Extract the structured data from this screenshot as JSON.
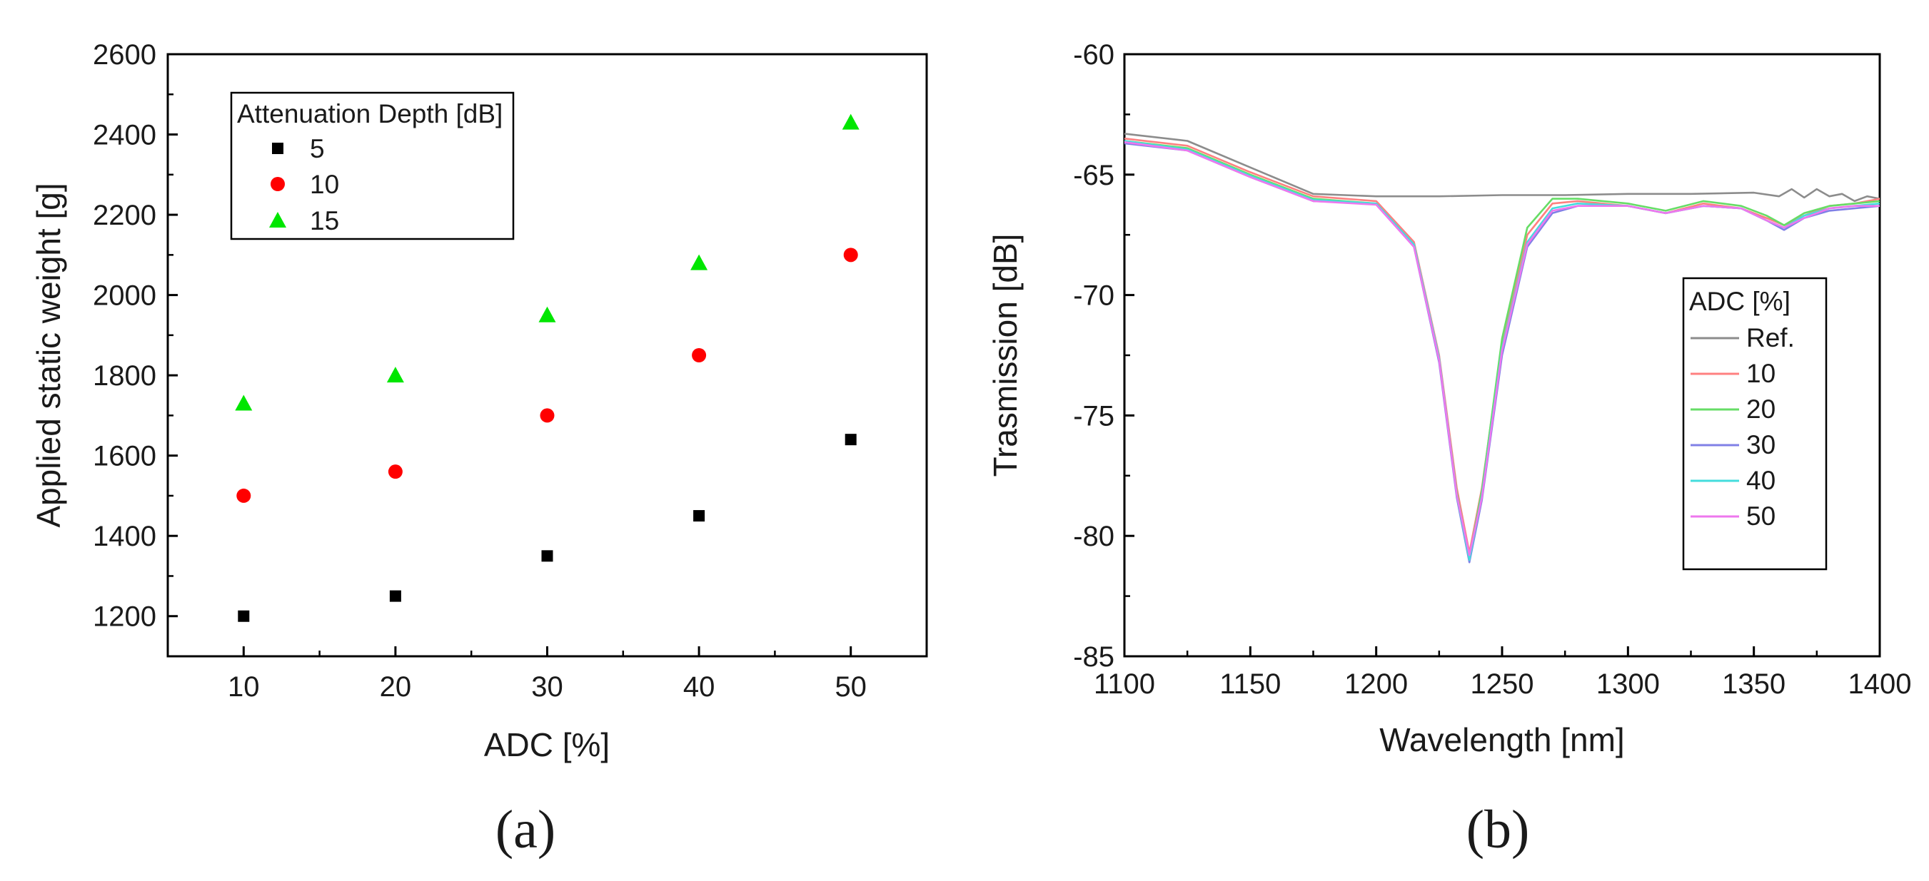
{
  "figure": {
    "panel_a_label": "(a)",
    "panel_b_label": "(b)"
  },
  "chart_data": [
    {
      "type": "scatter",
      "title": "",
      "xlabel": "ADC [%]",
      "ylabel": "Applied static weight [g]",
      "xlim": [
        5,
        55
      ],
      "ylim": [
        1100,
        2600
      ],
      "xticks": [
        10,
        20,
        30,
        40,
        50
      ],
      "yticks": [
        1200,
        1400,
        1600,
        1800,
        2000,
        2200,
        2400,
        2600
      ],
      "legend_title": "Attenuation Depth [dB]",
      "legend_position": "top-left",
      "series": [
        {
          "name": "5",
          "marker": "square",
          "color": "#000000",
          "x": [
            10,
            20,
            30,
            40,
            50
          ],
          "values": [
            1200,
            1250,
            1350,
            1450,
            1640
          ]
        },
        {
          "name": "10",
          "marker": "circle",
          "color": "#ff0000",
          "x": [
            10,
            20,
            30,
            40,
            50
          ],
          "values": [
            1500,
            1560,
            1700,
            1850,
            2100
          ]
        },
        {
          "name": "15",
          "marker": "triangle",
          "color": "#00e600",
          "x": [
            10,
            20,
            30,
            40,
            50
          ],
          "values": [
            1730,
            1800,
            1950,
            2080,
            2430
          ]
        }
      ]
    },
    {
      "type": "line",
      "title": "",
      "xlabel": "Wavelength [nm]",
      "ylabel": "Trasmission [dB]",
      "xlim": [
        1100,
        1400
      ],
      "ylim": [
        -85,
        -60
      ],
      "xticks": [
        1100,
        1150,
        1200,
        1250,
        1300,
        1350,
        1400
      ],
      "yticks": [
        -85,
        -80,
        -75,
        -70,
        -65,
        -60
      ],
      "legend_title": "ADC [%]",
      "legend_position": "center-right",
      "series": [
        {
          "name": "Ref.",
          "color": "#8c8c8c",
          "x": [
            1100,
            1125,
            1150,
            1175,
            1200,
            1225,
            1250,
            1275,
            1300,
            1325,
            1350,
            1360,
            1365,
            1370,
            1375,
            1380,
            1385,
            1390,
            1395,
            1400
          ],
          "values": [
            -63.3,
            -63.6,
            -64.7,
            -65.8,
            -65.9,
            -65.9,
            -65.85,
            -65.85,
            -65.8,
            -65.8,
            -65.75,
            -65.9,
            -65.6,
            -65.95,
            -65.6,
            -65.9,
            -65.8,
            -66.1,
            -65.9,
            -66.0
          ]
        },
        {
          "name": "10",
          "color": "#ff8080",
          "x": [
            1100,
            1125,
            1150,
            1175,
            1200,
            1215,
            1225,
            1232,
            1237,
            1242,
            1250,
            1260,
            1270,
            1280,
            1300,
            1315,
            1330,
            1345,
            1355,
            1362,
            1370,
            1380,
            1390,
            1400
          ],
          "values": [
            -63.5,
            -63.8,
            -64.9,
            -65.9,
            -66.1,
            -67.8,
            -72.5,
            -78.0,
            -80.7,
            -78.0,
            -72.0,
            -67.5,
            -66.2,
            -66.1,
            -66.3,
            -66.6,
            -66.2,
            -66.4,
            -66.8,
            -67.1,
            -66.7,
            -66.3,
            -66.2,
            -66.0
          ]
        },
        {
          "name": "20",
          "color": "#66dd66",
          "x": [
            1100,
            1125,
            1150,
            1175,
            1200,
            1215,
            1225,
            1232,
            1237,
            1242,
            1250,
            1260,
            1270,
            1280,
            1300,
            1315,
            1330,
            1345,
            1355,
            1362,
            1370,
            1380,
            1390,
            1400
          ],
          "values": [
            -63.6,
            -63.9,
            -65.0,
            -66.0,
            -66.2,
            -67.9,
            -72.7,
            -78.2,
            -80.9,
            -78.1,
            -71.8,
            -67.2,
            -66.0,
            -66.0,
            -66.2,
            -66.5,
            -66.1,
            -66.3,
            -66.7,
            -67.1,
            -66.6,
            -66.3,
            -66.2,
            -66.1
          ]
        },
        {
          "name": "30",
          "color": "#8080e6",
          "x": [
            1100,
            1125,
            1150,
            1175,
            1200,
            1215,
            1225,
            1232,
            1237,
            1242,
            1250,
            1260,
            1270,
            1280,
            1300,
            1315,
            1330,
            1345,
            1355,
            1362,
            1370,
            1380,
            1390,
            1400
          ],
          "values": [
            -63.7,
            -64.0,
            -65.1,
            -66.1,
            -66.2,
            -68.0,
            -72.8,
            -78.4,
            -81.1,
            -78.5,
            -72.5,
            -68.0,
            -66.6,
            -66.3,
            -66.3,
            -66.6,
            -66.3,
            -66.4,
            -66.9,
            -67.3,
            -66.8,
            -66.5,
            -66.4,
            -66.3
          ]
        },
        {
          "name": "40",
          "color": "#44dddd",
          "x": [
            1100,
            1125,
            1150,
            1175,
            1200,
            1215,
            1225,
            1232,
            1237,
            1242,
            1250,
            1260,
            1270,
            1280,
            1300,
            1315,
            1330,
            1345,
            1355,
            1362,
            1370,
            1380,
            1390,
            1400
          ],
          "values": [
            -63.6,
            -63.95,
            -65.05,
            -66.05,
            -66.2,
            -67.9,
            -72.6,
            -78.3,
            -81.0,
            -78.3,
            -72.2,
            -67.8,
            -66.4,
            -66.2,
            -66.3,
            -66.6,
            -66.3,
            -66.4,
            -66.9,
            -67.2,
            -66.7,
            -66.4,
            -66.3,
            -66.2
          ]
        },
        {
          "name": "50",
          "color": "#ee77ee",
          "x": [
            1100,
            1125,
            1150,
            1175,
            1200,
            1215,
            1225,
            1232,
            1237,
            1242,
            1250,
            1260,
            1270,
            1280,
            1300,
            1315,
            1330,
            1345,
            1355,
            1362,
            1370,
            1380,
            1390,
            1400
          ],
          "values": [
            -63.65,
            -64.0,
            -65.1,
            -66.1,
            -66.25,
            -68.0,
            -72.7,
            -78.3,
            -80.8,
            -78.4,
            -72.3,
            -67.9,
            -66.5,
            -66.3,
            -66.3,
            -66.6,
            -66.3,
            -66.4,
            -66.9,
            -67.2,
            -66.8,
            -66.4,
            -66.3,
            -66.3
          ]
        }
      ]
    }
  ]
}
